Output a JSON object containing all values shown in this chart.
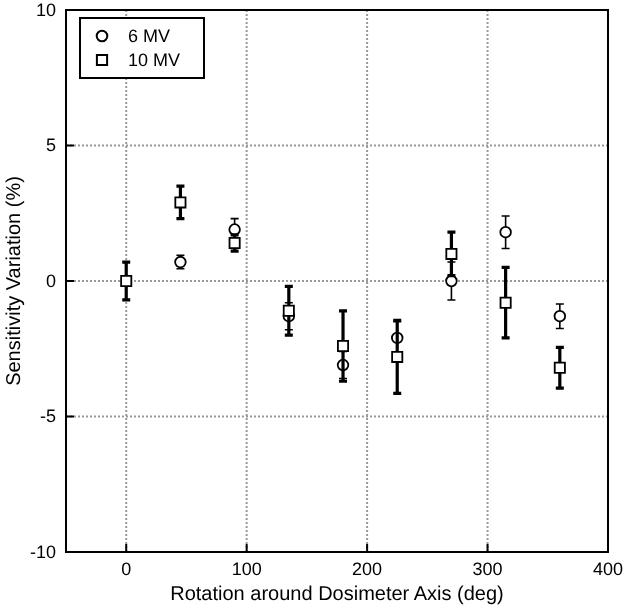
{
  "chart_data": {
    "type": "scatter",
    "xlabel": "Rotation around Dosimeter Axis (deg)",
    "ylabel": "Sensitivity Variation (%)",
    "xlim": [
      -50,
      400
    ],
    "xticks": [
      0,
      100,
      200,
      300,
      400
    ],
    "ylim": [
      -10,
      10
    ],
    "yticks": [
      -10,
      -5,
      0,
      5,
      10
    ],
    "grid": true,
    "legend": "top left",
    "series": [
      {
        "name": "6 MV",
        "color": "#000000",
        "marker": "circle",
        "x": [
          45,
          90,
          135,
          180,
          225,
          270,
          315,
          360
        ],
        "values": [
          0.7,
          1.9,
          -1.3,
          -3.1,
          -2.1,
          0,
          1.8,
          -1.3
        ],
        "errors": [
          0.25,
          0.4,
          0.5,
          0.5,
          0.6,
          0.7,
          0.6,
          0.45
        ]
      },
      {
        "name": "10 MV",
        "color": "#000000",
        "marker": "square",
        "x": [
          0,
          45,
          90,
          135,
          180,
          225,
          270,
          315,
          360
        ],
        "values": [
          0,
          2.9,
          1.4,
          -1.1,
          -2.4,
          -2.8,
          1.0,
          -0.8,
          -3.2
        ],
        "errors": [
          0.7,
          0.6,
          0.3,
          0.9,
          1.3,
          1.35,
          0.8,
          1.3,
          0.75
        ]
      }
    ]
  }
}
